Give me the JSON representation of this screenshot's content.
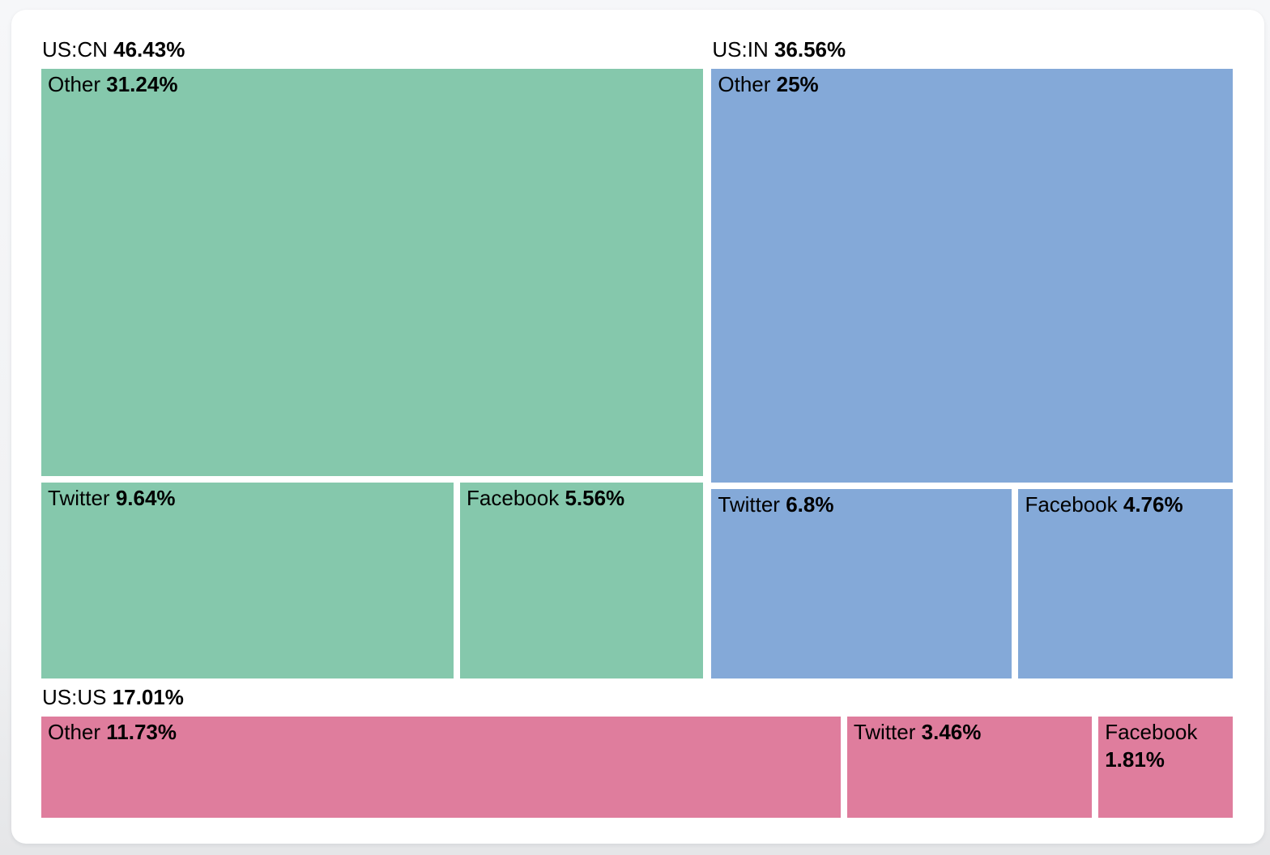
{
  "page": {
    "background_color": "#f0f1f3",
    "card_background": "#ffffff",
    "gap_color": "#ffffff",
    "text_color": "#000000"
  },
  "chart_data": {
    "type": "treemap",
    "unit": "percent",
    "legend_position": "none",
    "layout_hint": "top row holds US:CN and US:IN side by side; full-width US:US strip at bottom; cell areas proportional to values; group header above each group",
    "groups": [
      {
        "name": "US:CN",
        "share": "46.43%",
        "value": 46.43,
        "color": "#85c8ac",
        "children": [
          {
            "name": "Other",
            "share": "31.24%",
            "value": 31.24
          },
          {
            "name": "Twitter",
            "share": "9.64%",
            "value": 9.64
          },
          {
            "name": "Facebook",
            "share": "5.56%",
            "value": 5.56
          }
        ]
      },
      {
        "name": "US:IN",
        "share": "36.56%",
        "value": 36.56,
        "color": "#84a9d8",
        "children": [
          {
            "name": "Other",
            "share": "25%",
            "value": 25.0
          },
          {
            "name": "Twitter",
            "share": "6.8%",
            "value": 6.8
          },
          {
            "name": "Facebook",
            "share": "4.76%",
            "value": 4.76
          }
        ]
      },
      {
        "name": "US:US",
        "share": "17.01%",
        "value": 17.01,
        "color": "#df7d9d",
        "children": [
          {
            "name": "Other",
            "share": "11.73%",
            "value": 11.73
          },
          {
            "name": "Twitter",
            "share": "3.46%",
            "value": 3.46
          },
          {
            "name": "Facebook",
            "share": "1.81%",
            "value": 1.81
          }
        ]
      }
    ]
  }
}
